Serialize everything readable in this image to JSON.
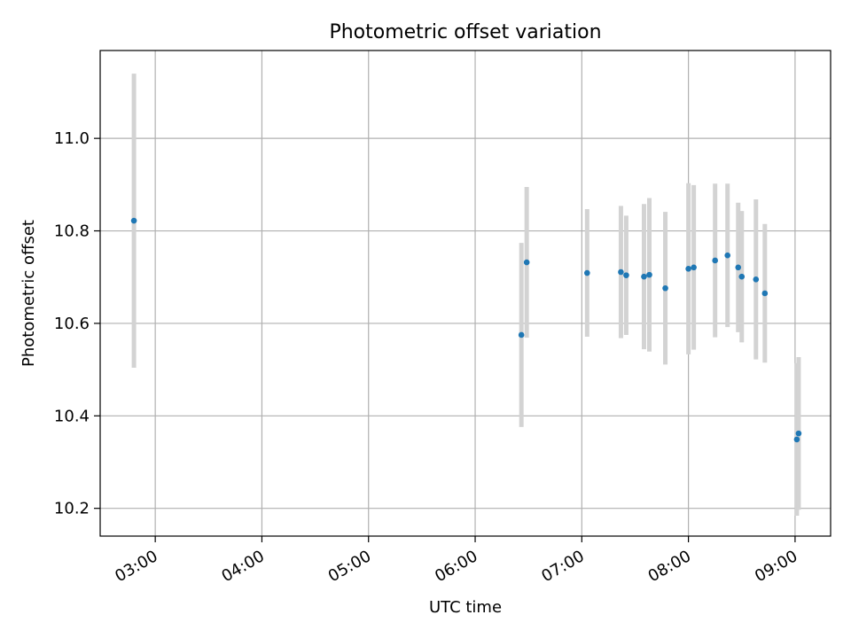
{
  "chart_data": {
    "type": "scatter",
    "title": "Photometric offset variation",
    "xlabel": "UTC time",
    "ylabel": "Photometric offset",
    "x_unit": "UTC time (HH:MM)",
    "xlim": [
      "02:29",
      "09:20"
    ],
    "ylim": [
      10.14,
      11.19
    ],
    "x_ticks": [
      "03:00",
      "04:00",
      "05:00",
      "06:00",
      "07:00",
      "08:00",
      "09:00"
    ],
    "y_ticks": [
      "10.2",
      "10.4",
      "10.6",
      "10.8",
      "11.0"
    ],
    "grid": true,
    "legend": false,
    "colors": {
      "point": "#1f77b4",
      "errorbar": "#d3d3d3",
      "grid": "#b0b0b0"
    },
    "series": [
      {
        "points": [
          {
            "x": "02:48",
            "y": 10.822,
            "err": 0.318
          },
          {
            "x": "06:26",
            "y": 10.575,
            "err": 0.199
          },
          {
            "x": "06:29",
            "y": 10.732,
            "err": 0.163
          },
          {
            "x": "07:03",
            "y": 10.709,
            "err": 0.138
          },
          {
            "x": "07:22",
            "y": 10.711,
            "err": 0.143
          },
          {
            "x": "07:25",
            "y": 10.704,
            "err": 0.129
          },
          {
            "x": "07:35",
            "y": 10.701,
            "err": 0.157
          },
          {
            "x": "07:38",
            "y": 10.705,
            "err": 0.166
          },
          {
            "x": "07:47",
            "y": 10.676,
            "err": 0.165
          },
          {
            "x": "08:00",
            "y": 10.718,
            "err": 0.185
          },
          {
            "x": "08:03",
            "y": 10.721,
            "err": 0.178
          },
          {
            "x": "08:15",
            "y": 10.736,
            "err": 0.166
          },
          {
            "x": "08:22",
            "y": 10.747,
            "err": 0.155
          },
          {
            "x": "08:28",
            "y": 10.721,
            "err": 0.14
          },
          {
            "x": "08:30",
            "y": 10.701,
            "err": 0.142
          },
          {
            "x": "08:38",
            "y": 10.695,
            "err": 0.173
          },
          {
            "x": "08:43",
            "y": 10.665,
            "err": 0.15
          },
          {
            "x": "09:01",
            "y": 10.349,
            "err": 0.165
          },
          {
            "x": "09:02",
            "y": 10.362,
            "err": 0.165
          }
        ]
      }
    ]
  }
}
